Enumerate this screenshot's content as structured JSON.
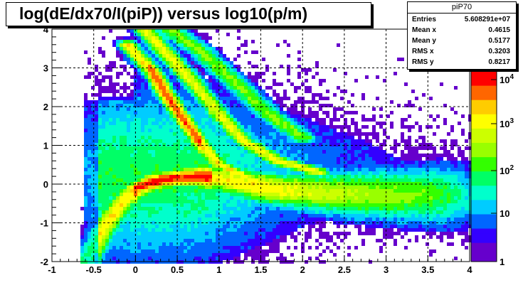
{
  "title": "log(dE/dx70/I(piP)) versus log10(p/m)",
  "stats": {
    "name": "piP70",
    "rows": [
      {
        "key": "Entries",
        "value": "5.608291e+07"
      },
      {
        "key": "Mean x",
        "value": "0.4615"
      },
      {
        "key": "Mean y",
        "value": "0.5177"
      },
      {
        "key": "RMS x",
        "value": "0.3203"
      },
      {
        "key": "RMS y",
        "value": "0.8217"
      }
    ]
  },
  "chart_data": {
    "type": "heatmap",
    "title": "log(dE/dx70/I(piP)) versus log10(p/m)",
    "xlabel": "",
    "ylabel": "",
    "xlim": [
      -1,
      4
    ],
    "ylim": [
      -2,
      4
    ],
    "x_ticks": [
      "-1",
      "-0.5",
      "0",
      "0.5",
      "1",
      "1.5",
      "2",
      "2.5",
      "3",
      "3.5",
      "4"
    ],
    "y_ticks": [
      "-2",
      "-1",
      "0",
      "1",
      "2",
      "3",
      "4"
    ],
    "grid": true,
    "z_scale": "log",
    "z_ticks": [
      "1",
      "10",
      "10^2",
      "10^3",
      "10^4"
    ],
    "palette": [
      "#6600cc",
      "#3300ff",
      "#0066ff",
      "#00ccff",
      "#00ffcc",
      "#00ff66",
      "#33ff00",
      "#99ff00",
      "#ccff00",
      "#ffff00",
      "#ffcc00",
      "#ff6600",
      "#ff0000"
    ],
    "bands": [
      {
        "description": "main pion band",
        "points": [
          [
            -0.6,
            -2.0
          ],
          [
            -0.4,
            -1.2
          ],
          [
            -0.2,
            -0.6
          ],
          [
            0.0,
            -0.1
          ],
          [
            0.3,
            0.1
          ],
          [
            0.5,
            0.15
          ],
          [
            0.8,
            0.2
          ],
          [
            1.2,
            0.05
          ],
          [
            1.7,
            -0.15
          ],
          [
            2.5,
            -0.25
          ],
          [
            3.5,
            -0.3
          ]
        ]
      },
      {
        "description": "kaon band",
        "points": [
          [
            -0.1,
            3.6
          ],
          [
            0.2,
            2.9
          ],
          [
            0.4,
            2.2
          ],
          [
            0.6,
            1.6
          ],
          [
            0.8,
            1.0
          ],
          [
            1.0,
            0.5
          ],
          [
            1.3,
            0.2
          ]
        ]
      },
      {
        "description": "proton band",
        "points": [
          [
            0.1,
            4.0
          ],
          [
            0.4,
            3.3
          ],
          [
            0.7,
            2.6
          ],
          [
            1.0,
            1.8
          ],
          [
            1.3,
            1.1
          ],
          [
            1.7,
            0.6
          ],
          [
            2.2,
            0.3
          ]
        ]
      },
      {
        "description": "deuteron band",
        "points": [
          [
            0.4,
            4.0
          ],
          [
            0.8,
            3.4
          ],
          [
            1.2,
            2.6
          ],
          [
            1.6,
            1.8
          ],
          [
            2.0,
            1.2
          ]
        ]
      }
    ]
  }
}
